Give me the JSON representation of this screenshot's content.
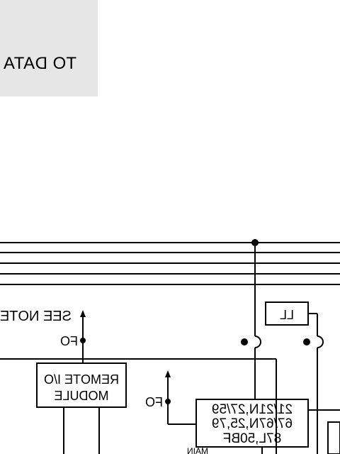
{
  "panel": {
    "label": "TO DATA"
  },
  "notes": {
    "see_note": "SEE NOTE",
    "fo_1": "FO",
    "fo_2": "FO"
  },
  "remote_module": {
    "line1": "REMOTE I/O",
    "line2": "MODULE"
  },
  "relay_block": {
    "line1": "21/21N,27/59",
    "line2": "67/67N,25,79",
    "line3": "87L,50BF",
    "line4": "MAIN"
  },
  "small_box": {
    "label": "LL"
  },
  "colors": {
    "line": "#000000",
    "panel": "#e6e6e6",
    "background": "#ffffff"
  }
}
